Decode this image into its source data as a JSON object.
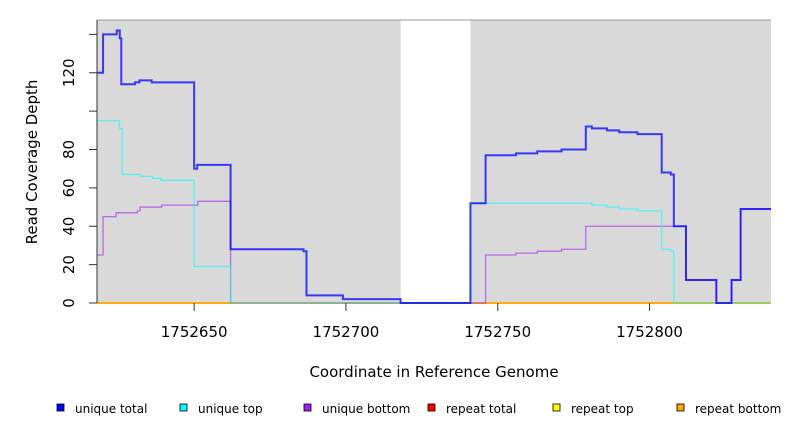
{
  "chart_data": {
    "type": "line",
    "step": true,
    "title": "",
    "xlabel": "Coordinate in Reference Genome",
    "ylabel": "Read Coverage Depth",
    "xlim": [
      1752618,
      1752840
    ],
    "ylim": [
      0,
      147.5
    ],
    "x_ticks": [
      1752650,
      1752700,
      1752750,
      1752800
    ],
    "x_tick_labels": [
      "1752650",
      "1752700",
      "1752750",
      "1752800"
    ],
    "y_ticks": [
      0,
      20,
      40,
      60,
      80,
      100,
      120,
      140
    ],
    "y_tick_labels": [
      "0",
      "20",
      "40",
      "60",
      "80",
      "",
      "120",
      ""
    ],
    "shaded_ranges": [
      [
        1752618,
        1752718
      ],
      [
        1752741,
        1752840
      ]
    ],
    "shade_color": "#d9d9d9",
    "legend_position": "bottom",
    "series": [
      {
        "name": "unique total",
        "color": "#0000ff",
        "steps": [
          [
            1752618,
            120
          ],
          [
            1752620,
            140
          ],
          [
            1752624.5,
            142
          ],
          [
            1752625.5,
            138
          ],
          [
            1752626,
            114
          ],
          [
            1752630.5,
            115
          ],
          [
            1752632,
            116
          ],
          [
            1752636,
            115
          ],
          [
            1752650,
            70
          ],
          [
            1752651,
            72
          ],
          [
            1752662,
            28
          ],
          [
            1752686,
            27
          ],
          [
            1752687,
            4
          ],
          [
            1752699,
            2
          ],
          [
            1752718,
            0
          ],
          [
            1752741,
            52
          ],
          [
            1752746,
            77
          ],
          [
            1752756,
            78
          ],
          [
            1752763,
            79
          ],
          [
            1752771,
            80
          ],
          [
            1752779,
            92
          ],
          [
            1752781,
            91
          ],
          [
            1752786,
            90
          ],
          [
            1752790,
            89
          ],
          [
            1752796,
            88
          ],
          [
            1752804,
            68
          ],
          [
            1752807,
            67
          ],
          [
            1752808,
            40
          ],
          [
            1752812,
            12
          ],
          [
            1752822,
            0
          ],
          [
            1752827,
            12
          ],
          [
            1752830,
            49
          ],
          [
            1752840,
            49
          ]
        ]
      },
      {
        "name": "unique top",
        "color": "#00ffff",
        "steps": [
          [
            1752618,
            95
          ],
          [
            1752625.4,
            91
          ],
          [
            1752626.3,
            67
          ],
          [
            1752632.4,
            66
          ],
          [
            1752636.2,
            65
          ],
          [
            1752639,
            64
          ],
          [
            1752650,
            19
          ],
          [
            1752662,
            0
          ],
          [
            1752741,
            52
          ],
          [
            1752781,
            51
          ],
          [
            1752786,
            50
          ],
          [
            1752790,
            49
          ],
          [
            1752796,
            48
          ],
          [
            1752804,
            28
          ],
          [
            1752807,
            27
          ],
          [
            1752808,
            0
          ],
          [
            1752840,
            0
          ]
        ]
      },
      {
        "name": "unique bottom",
        "color": "#a020f0",
        "steps": [
          [
            1752618,
            25
          ],
          [
            1752620,
            45
          ],
          [
            1752624.3,
            47
          ],
          [
            1752631.3,
            48
          ],
          [
            1752632.2,
            50
          ],
          [
            1752639.3,
            51
          ],
          [
            1752651.2,
            53
          ],
          [
            1752662,
            0
          ],
          [
            1752746,
            25
          ],
          [
            1752756,
            26
          ],
          [
            1752763,
            27
          ],
          [
            1752771,
            28
          ],
          [
            1752779,
            40
          ],
          [
            1752812,
            12
          ],
          [
            1752822,
            0
          ],
          [
            1752827,
            12
          ],
          [
            1752830,
            49
          ],
          [
            1752840,
            49
          ]
        ]
      },
      {
        "name": "repeat total",
        "color": "#ff0000",
        "steps": [
          [
            1752618,
            0
          ],
          [
            1752840,
            0
          ]
        ]
      },
      {
        "name": "repeat top",
        "color": "#ffff00",
        "steps": [
          [
            1752618,
            0
          ],
          [
            1752840,
            0
          ]
        ]
      },
      {
        "name": "repeat bottom",
        "color": "#ffa500",
        "steps": [
          [
            1752618,
            0
          ],
          [
            1752840,
            0
          ]
        ]
      }
    ]
  }
}
